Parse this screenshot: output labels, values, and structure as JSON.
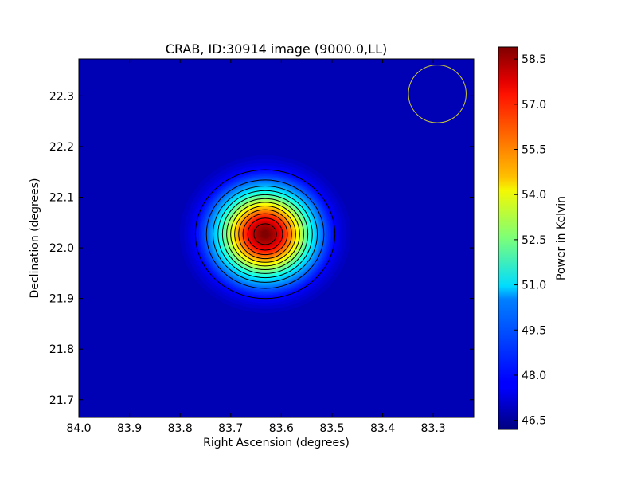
{
  "chart_data": {
    "type": "heatmap",
    "title": "CRAB, ID:30914 image (9000.0,LL)",
    "xlabel": "Right Ascension (degrees)",
    "ylabel": "Declination (degrees)",
    "colorbar_label": "Power in Kelvin",
    "xlim": [
      84.0,
      83.22
    ],
    "ylim": [
      21.665,
      22.373
    ],
    "x_ticks": [
      "84.0",
      "83.9",
      "83.8",
      "83.7",
      "83.6",
      "83.5",
      "83.4",
      "83.3"
    ],
    "x_tick_values": [
      84.0,
      83.9,
      83.8,
      83.7,
      83.6,
      83.5,
      83.4,
      83.3
    ],
    "y_ticks": [
      "21.7",
      "21.8",
      "21.9",
      "22.0",
      "22.1",
      "22.2",
      "22.3"
    ],
    "y_tick_values": [
      21.7,
      21.8,
      21.9,
      22.0,
      22.1,
      22.2,
      22.3
    ],
    "colorbar_ticks": [
      "46.5",
      "48.0",
      "49.5",
      "51.0",
      "52.5",
      "54.0",
      "55.5",
      "57.0",
      "58.5"
    ],
    "colorbar_tick_values": [
      46.5,
      48.0,
      49.5,
      51.0,
      52.5,
      54.0,
      55.5,
      57.0,
      58.5
    ],
    "colorbar_range": [
      46.2,
      58.9
    ],
    "colormap": "jet",
    "source": {
      "peak_ra": 83.632,
      "peak_dec": 22.027,
      "peak_value": 58.9,
      "background_value": 46.6
    },
    "contour_levels": [
      47.9,
      49.1,
      50.1,
      51.0,
      51.9,
      52.8,
      53.7,
      54.6,
      55.5,
      56.4,
      57.3,
      58.2
    ],
    "beam_circle": {
      "ra": 83.292,
      "dec": 22.304,
      "radius_deg": 0.057,
      "color": "#c9c83a"
    },
    "grid": false
  }
}
